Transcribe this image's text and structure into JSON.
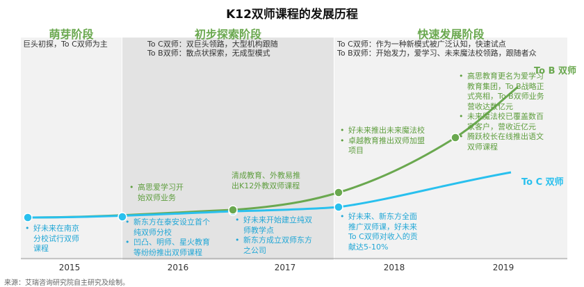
{
  "title": "K12双师课程的发展历程",
  "stages": [
    {
      "name": "萌芽阶段",
      "desc": [
        "巨头初探，To C双师为主"
      ]
    },
    {
      "name": "初步探索阶段",
      "desc": [
        "To C双师：双巨头领路，大型机构跟随",
        "To B双师：散点状探索，无成型模式"
      ]
    },
    {
      "name": "快速发展阶段",
      "desc": [
        "To C双师：作为一种新模式被广泛认知，快速试点",
        "To B双师：开始发力，爱学习、未来魔法校领路，跟随者众"
      ]
    }
  ],
  "series": {
    "tob": "To B 双师",
    "toc": "To C 双师"
  },
  "notes": {
    "g1": [
      "高思爱学习开",
      "始双师业务"
    ],
    "g2": [
      "清成教育、外教易推",
      "出K12外教双师课程"
    ],
    "g3a": [
      "好未来推出未来魔法校"
    ],
    "g3b": [
      "卓越教育推出双师加盟",
      "项目"
    ],
    "g4a": [
      "高思教育更名为爱学习",
      "教育集团，To B战略正",
      "式亮相，To B双师业务",
      "营收达数亿元"
    ],
    "g4b": [
      "未来魔法校已覆盖数百",
      "家客户，营收近亿元"
    ],
    "g4c": [
      "腾跃校长在线推出语文",
      "双师课程"
    ],
    "b1": [
      "好未来在南京",
      "分校试行双师",
      "课程"
    ],
    "b2a": [
      "新东方在泰安设立首个",
      "纯双师分校"
    ],
    "b2b": [
      "凹凸、明师、星火教育",
      "等纷纷推出双师课程"
    ],
    "b3a": [
      "好未来开始建立纯双",
      "师教学点"
    ],
    "b3b": [
      "新东方成立双师东方",
      "之公司"
    ],
    "b4": [
      "好未来、新东方全面",
      "推广双师课，好未来",
      "To C双师对收入的贡",
      "献达5-10%"
    ]
  },
  "years": [
    "2015",
    "2016",
    "2017",
    "2018",
    "2019"
  ],
  "source": "来源：艾瑞咨询研究院自主研究及绘制。",
  "colors": {
    "green": "#6aa84f",
    "blue": "#29c0ee",
    "panel1": "#f2f2f2",
    "panel2": "#e3e3e3",
    "panel3": "#f2f2f2"
  }
}
